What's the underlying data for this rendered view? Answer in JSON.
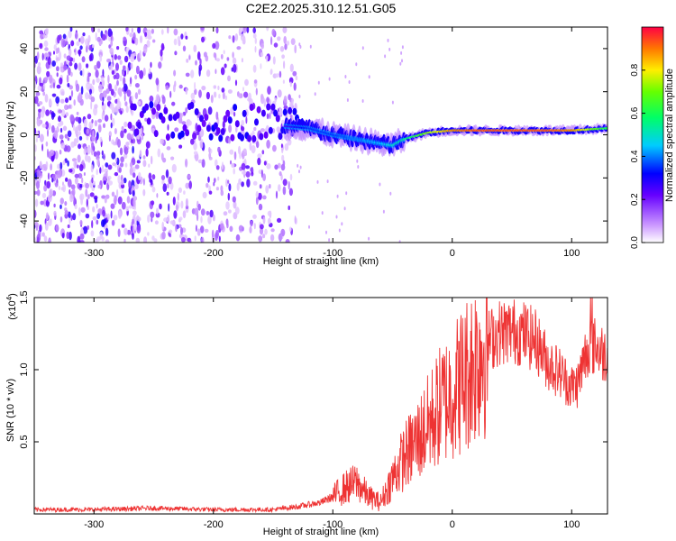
{
  "title": "C2E2.2025.310.12.51.G05",
  "chart_data": [
    {
      "type": "heatmap",
      "xlabel": "Height of straight line (km)",
      "ylabel": "Frequency (Hz)",
      "xlim": [
        -350,
        130
      ],
      "ylim": [
        -50,
        50
      ],
      "xticks": [
        -300,
        -200,
        -100,
        0,
        100
      ],
      "xtick_labels": [
        "-300",
        "-200",
        "-100",
        "0",
        "100"
      ],
      "yticks": [
        -40,
        -20,
        0,
        20,
        40
      ],
      "ytick_labels": [
        "-40",
        "-20",
        "0",
        "20",
        "40"
      ],
      "colorbar": {
        "label": "Normalized spectral amplitude",
        "range": [
          0,
          1
        ],
        "ticks": [
          0.0,
          0.2,
          0.4,
          0.6,
          0.8
        ],
        "tick_labels": [
          "0.0",
          "0.2",
          "0.4",
          "0.6",
          "0.8"
        ]
      },
      "ridge": {
        "x": [
          -140,
          -120,
          -100,
          -80,
          -60,
          -50,
          -40,
          -20,
          0,
          20,
          60,
          80,
          100,
          130
        ],
        "y": [
          4,
          3,
          0,
          -2,
          -4,
          -5,
          -2,
          1,
          2,
          2,
          2,
          2,
          2,
          3
        ],
        "amplitude": [
          0.25,
          0.35,
          0.35,
          0.4,
          0.45,
          0.5,
          0.55,
          0.75,
          0.9,
          0.95,
          0.95,
          0.95,
          0.9,
          0.6
        ]
      },
      "noise": {
        "x_range": [
          -350,
          -130
        ],
        "dense_x_range": [
          -350,
          -260
        ]
      }
    },
    {
      "type": "line",
      "xlabel": "Height of straight line (km)",
      "ylabel": "SNR (10 * v/v)",
      "multiplier_label": "(x10",
      "multiplier_exp": "4",
      "xlim": [
        -350,
        130
      ],
      "ylim": [
        0,
        1.5
      ],
      "xticks": [
        -300,
        -200,
        -100,
        0,
        100
      ],
      "xtick_labels": [
        "-300",
        "-200",
        "-100",
        "0",
        "100"
      ],
      "yticks": [
        0.5,
        1.0,
        1.5
      ],
      "ytick_labels": [
        "0.5",
        "1.0",
        "1.5"
      ],
      "series": [
        {
          "name": "SNR",
          "color": "#ee3333",
          "x": [
            -350,
            -300,
            -250,
            -200,
            -150,
            -130,
            -110,
            -100,
            -90,
            -80,
            -70,
            -60,
            -50,
            -40,
            -30,
            -20,
            -10,
            0,
            10,
            20,
            30,
            40,
            50,
            60,
            70,
            80,
            90,
            100,
            105,
            110,
            115,
            120,
            125,
            130
          ],
          "y": [
            0.03,
            0.03,
            0.04,
            0.03,
            0.03,
            0.05,
            0.08,
            0.12,
            0.18,
            0.22,
            0.12,
            0.08,
            0.25,
            0.4,
            0.5,
            0.62,
            0.75,
            0.85,
            0.95,
            1.08,
            1.2,
            1.26,
            1.27,
            1.25,
            1.2,
            1.05,
            0.98,
            0.88,
            0.9,
            1.05,
            1.2,
            1.15,
            1.12,
            1.1
          ]
        }
      ]
    }
  ]
}
